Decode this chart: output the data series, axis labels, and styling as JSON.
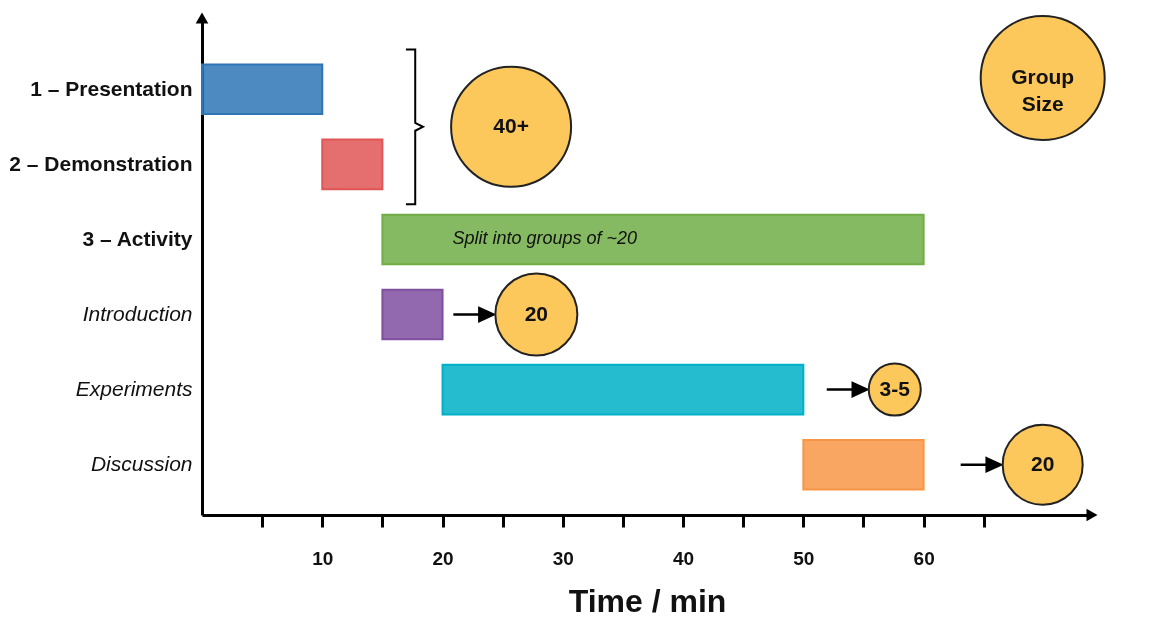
{
  "chart_data": {
    "type": "bar",
    "orientation": "horizontal",
    "xlabel": "Time / min",
    "categories": [
      "1 – Presentation",
      "2 – Demonstration",
      "3 – Activity",
      "Introduction",
      "Experiments",
      "Discussion"
    ],
    "base": [
      0,
      10,
      15,
      15,
      20,
      50
    ],
    "values": [
      10,
      5,
      45,
      5,
      30,
      10
    ],
    "colors": [
      "#2e75b6",
      "#e05555",
      "#70ad47",
      "#7f4fa0",
      "#00b0c8",
      "#f79646"
    ],
    "xlim": [
      0,
      74
    ],
    "xticks": [
      {
        "value": 5,
        "label": null
      },
      10,
      {
        "value": 15,
        "label": null
      },
      20,
      {
        "value": 25,
        "label": null
      },
      30,
      {
        "value": 35,
        "label": null
      },
      40,
      {
        "value": 45,
        "label": null
      },
      50,
      {
        "value": 55,
        "label": null
      },
      60,
      {
        "value": 65,
        "label": null
      }
    ],
    "annotations": [
      "40+",
      "Group Size",
      "Split into groups of ~20",
      "20",
      "3-5",
      "20"
    ]
  }
}
